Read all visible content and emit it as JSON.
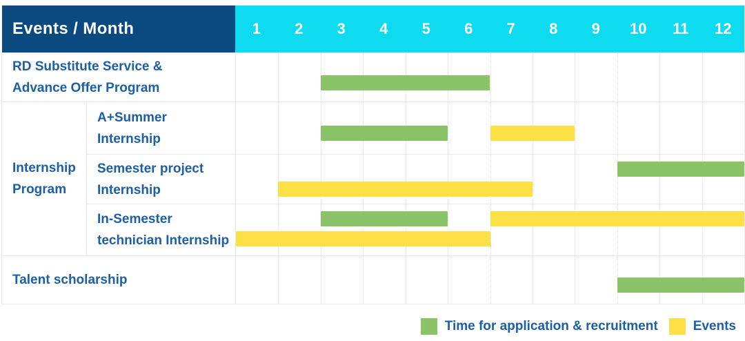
{
  "header": {
    "title": "Events / Month"
  },
  "colors": {
    "header_bg": "#0b4a80",
    "months_header_bg": "#0edaf0",
    "label_text": "#1c5fa6",
    "recruitment": "#8bc369",
    "event": "#fde045"
  },
  "legend": [
    {
      "label": "Time for application & recruitment",
      "series": "recruitment",
      "color": "#8bc369"
    },
    {
      "label": "Events",
      "series": "event",
      "color": "#fde045"
    }
  ],
  "chart_data": {
    "type": "bar",
    "subtype": "gantt",
    "title": "Events / Month",
    "x_categories": [
      "1",
      "2",
      "3",
      "4",
      "5",
      "6",
      "7",
      "8",
      "9",
      "10",
      "11",
      "12"
    ],
    "x_range": [
      1,
      12
    ],
    "grid": "vertical-dotted",
    "legend_position": "bottom-right",
    "series_legend": [
      {
        "name": "Time for application & recruitment",
        "color": "#8bc369"
      },
      {
        "name": "Events",
        "color": "#fde045"
      }
    ],
    "rows": [
      {
        "group": "",
        "label_lines": [
          "RD Substitute Service &",
          "Advance Offer Program"
        ],
        "lanes": [
          [
            {
              "series": "recruitment",
              "start_month": 3,
              "end_month": 6
            }
          ]
        ]
      },
      {
        "group": "Internship Program",
        "label_lines": [
          "A+Summer",
          "Internship"
        ],
        "lanes": [
          [
            {
              "series": "recruitment",
              "start_month": 3,
              "end_month": 5
            },
            {
              "series": "event",
              "start_month": 7,
              "end_month": 8
            }
          ]
        ]
      },
      {
        "group": "Internship Program",
        "label_lines": [
          "Semester project",
          "Internship"
        ],
        "lanes": [
          [
            {
              "series": "recruitment",
              "start_month": 10,
              "end_month": 12
            }
          ],
          [
            {
              "series": "event",
              "start_month": 2,
              "end_month": 7
            }
          ]
        ]
      },
      {
        "group": "Internship Program",
        "label_lines": [
          "In-Semester",
          "technician Internship"
        ],
        "lanes": [
          [
            {
              "series": "recruitment",
              "start_month": 3,
              "end_month": 5
            },
            {
              "series": "event",
              "start_month": 7,
              "end_month": 12
            }
          ],
          [
            {
              "series": "event",
              "start_month": 1,
              "end_month": 6
            }
          ]
        ]
      },
      {
        "group": "",
        "label_lines": [
          "Talent scholarship"
        ],
        "lanes": [
          [
            {
              "series": "recruitment",
              "start_month": 10,
              "end_month": 12
            }
          ]
        ]
      }
    ],
    "group_label_lines": [
      "Internship",
      "Program"
    ]
  }
}
